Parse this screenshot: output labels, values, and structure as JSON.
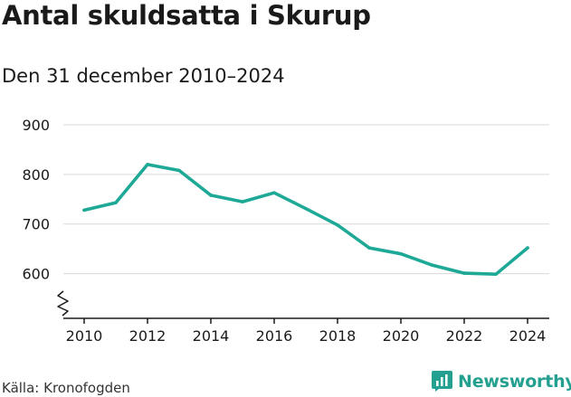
{
  "title": "Antal skuldsatta i Skurup",
  "subtitle": "Den 31 december 2010–2024",
  "source": "Källa: Kronofogden",
  "brand": {
    "name": "Newsworthy",
    "color": "#23a08f"
  },
  "chart_data": {
    "type": "line",
    "title": "Antal skuldsatta i Skurup",
    "subtitle": "Den 31 december 2010–2024",
    "xlabel": "",
    "ylabel": "",
    "x": [
      2010,
      2011,
      2012,
      2013,
      2014,
      2015,
      2016,
      2017,
      2018,
      2019,
      2020,
      2021,
      2022,
      2023,
      2024
    ],
    "series": [
      {
        "values": [
          728,
          743,
          820,
          808,
          758,
          745,
          763,
          731,
          698,
          652,
          640,
          617,
          601,
          599,
          652
        ],
        "color": "#1ea896"
      }
    ],
    "xticks": [
      "2010",
      "2012",
      "2014",
      "2016",
      "2018",
      "2020",
      "2022",
      "2024"
    ],
    "yticks": [
      "600",
      "700",
      "800",
      "900"
    ],
    "ylim": [
      510,
      900
    ],
    "xlim": [
      2010,
      2024
    ],
    "grid": true,
    "axis_break": true,
    "legend": "none"
  }
}
